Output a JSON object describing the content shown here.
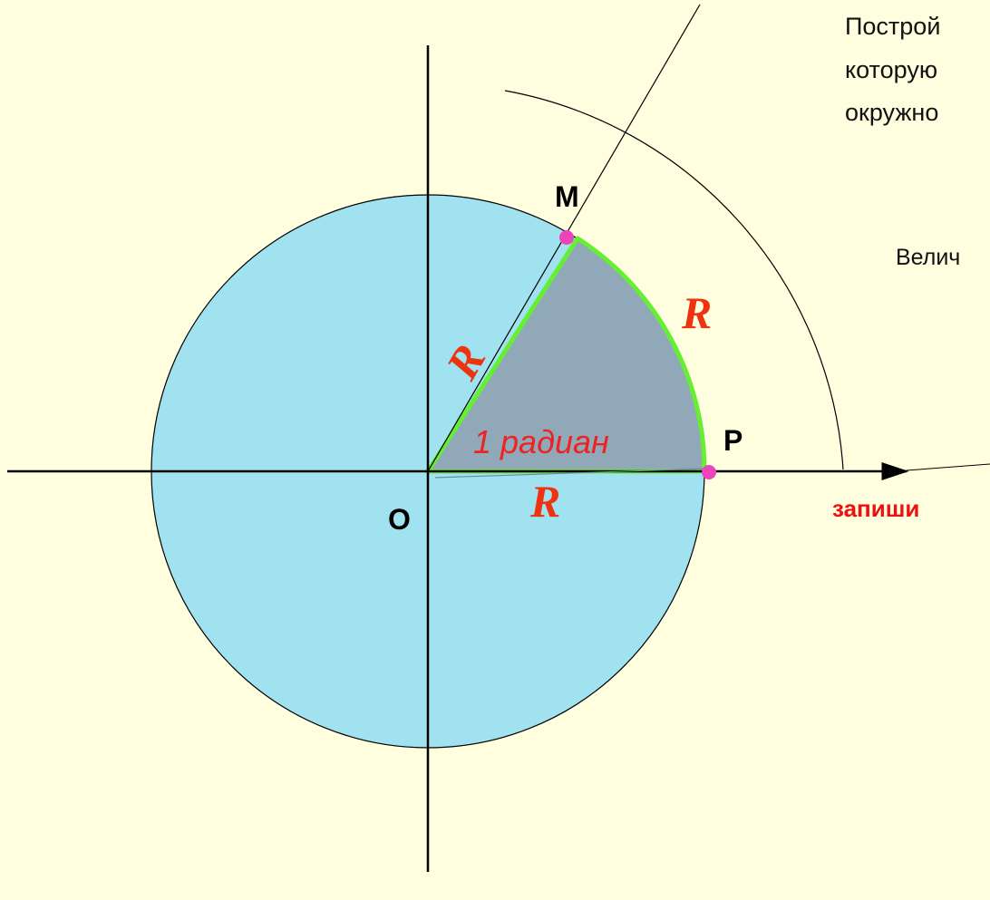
{
  "text_lines": [
    "Построй",
    "которую",
    "окружно"
  ],
  "magnitude_text": "Велич",
  "point_m": "М",
  "point_p": "Р",
  "point_o": "O",
  "radius_labels": [
    "R",
    "R",
    "R"
  ],
  "angle_label": "1 радиан",
  "instruction": "запиши"
}
